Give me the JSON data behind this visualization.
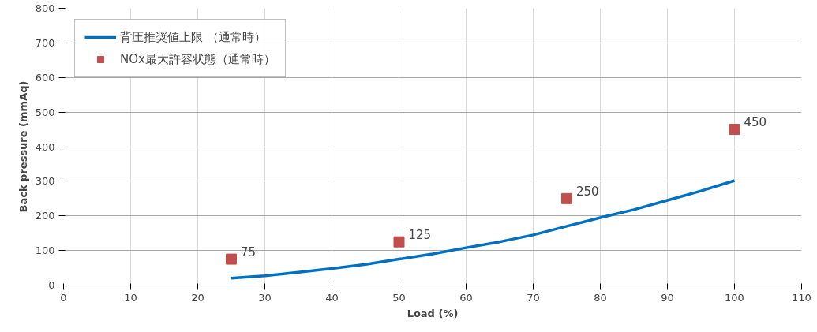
{
  "chart_data": {
    "type": "line",
    "xlabel": "Load (%)",
    "ylabel": "Back pressure (mmAq)",
    "xlim": [
      0,
      110
    ],
    "xticks": [
      0,
      10,
      20,
      30,
      40,
      50,
      60,
      70,
      80,
      90,
      100,
      110
    ],
    "ylim": [
      0,
      800
    ],
    "yticks": [
      0,
      100,
      200,
      300,
      400,
      500,
      600,
      700,
      800
    ],
    "grid": true,
    "legend": "top left",
    "series": [
      {
        "name": "背圧推奨値上限 （通常時）",
        "color": "#0070c0",
        "line_style": "solid",
        "x": [
          25,
          30,
          35,
          40,
          45,
          50,
          55,
          60,
          65,
          70,
          75,
          80,
          85,
          90,
          95,
          100
        ],
        "values": [
          20,
          27,
          37,
          48,
          60,
          75,
          90,
          108,
          125,
          145,
          170,
          195,
          218,
          245,
          272,
          302
        ]
      },
      {
        "name": "NOx最大許容状態（通常時）",
        "type": "scatter",
        "color": "#c0504d",
        "marker": "square",
        "x": [
          25,
          50,
          75,
          100
        ],
        "values": [
          75,
          125,
          250,
          450
        ],
        "data_labels": true
      }
    ]
  }
}
